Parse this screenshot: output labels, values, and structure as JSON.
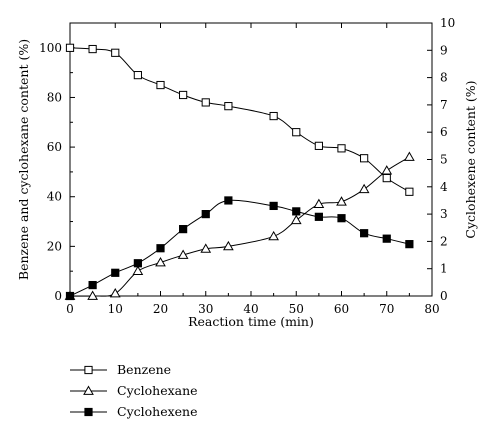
{
  "chart_data": {
    "type": "line",
    "xlabel": "Reaction time (min)",
    "ylabel_left": "Benzene and cyclohexane content (%)",
    "ylabel_right": "Cyclohexene content (%)",
    "xlim": [
      0,
      80
    ],
    "ylim_left": [
      0,
      110
    ],
    "ylim_right": [
      0,
      10
    ],
    "x_ticks": [
      0,
      10,
      20,
      30,
      40,
      50,
      60,
      70,
      80
    ],
    "y_left_ticks": [
      0,
      20,
      40,
      60,
      80,
      100
    ],
    "y_right_ticks": [
      0,
      1,
      2,
      3,
      4,
      5,
      6,
      7,
      8,
      9,
      10
    ],
    "grid": false,
    "legend_position": "bottom-left",
    "series": [
      {
        "name": "Benzene",
        "marker": "open-square",
        "axis": "left",
        "x": [
          0,
          5,
          10,
          15,
          20,
          25,
          30,
          35,
          45,
          50,
          55,
          60,
          65,
          70,
          75
        ],
        "y": [
          100,
          99.5,
          98,
          89,
          85,
          81,
          78,
          76.5,
          72.5,
          66,
          60.5,
          59.5,
          55.5,
          47.5,
          42
        ]
      },
      {
        "name": "Cyclohexane",
        "marker": "open-triangle",
        "axis": "left",
        "x": [
          0,
          5,
          10,
          15,
          20,
          25,
          30,
          35,
          45,
          50,
          55,
          60,
          65,
          70,
          75
        ],
        "y": [
          0,
          0,
          1,
          10,
          13.5,
          16.5,
          19,
          20,
          24,
          30.5,
          37,
          38,
          43,
          50.5,
          56
        ]
      },
      {
        "name": "Cyclohexene",
        "marker": "filled-square",
        "axis": "right",
        "x": [
          0,
          5,
          10,
          15,
          20,
          25,
          30,
          35,
          45,
          50,
          55,
          60,
          65,
          70,
          75
        ],
        "y": [
          0,
          0.4,
          0.85,
          1.2,
          1.75,
          2.45,
          3.0,
          3.5,
          3.3,
          3.1,
          2.9,
          2.85,
          2.3,
          2.1,
          1.9
        ]
      }
    ]
  }
}
